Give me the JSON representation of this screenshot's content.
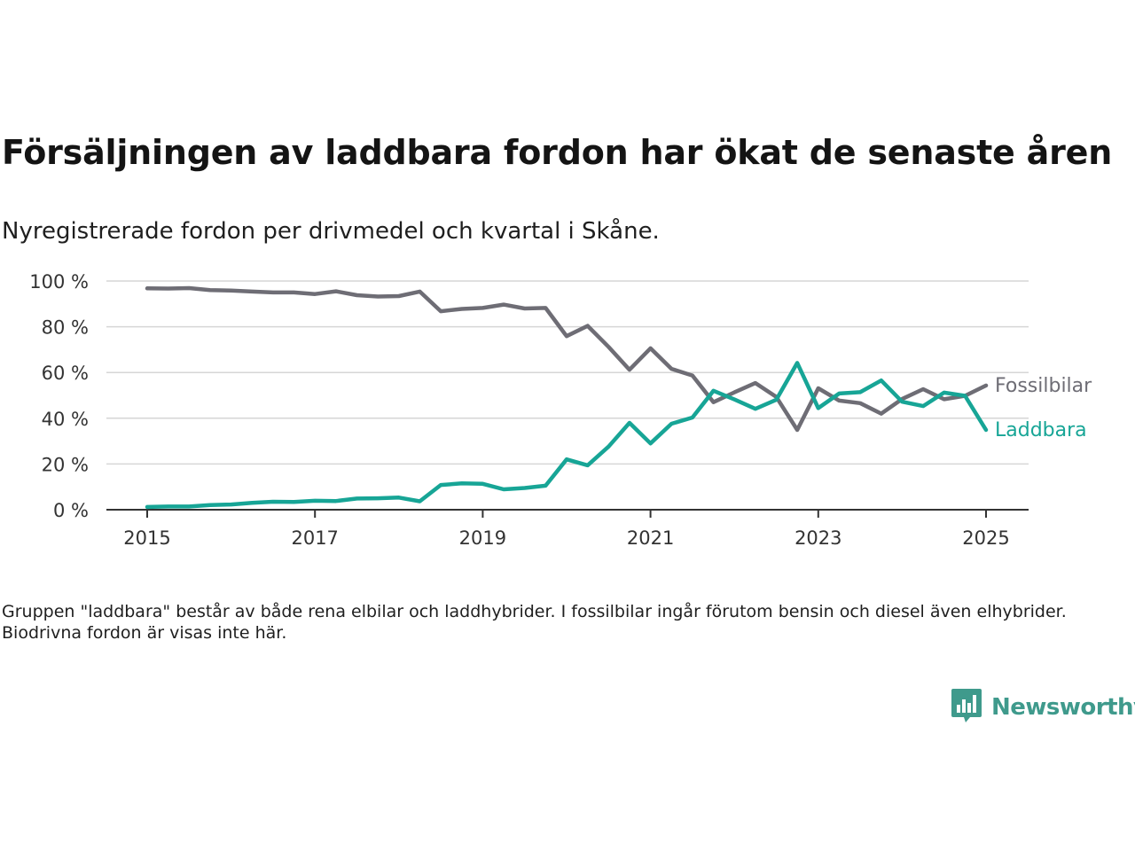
{
  "title": "Försäljningen av laddbara fordon har ökat de senaste åren",
  "subtitle": "Nyregistrerade fordon per drivmedel och kvartal i Skåne.",
  "note": "Gruppen \"laddbara\" består av både rena elbilar och laddhybrider. I fossilbilar ingår förutom bensin och diesel även elhybrider. Biodrivna fordon är visas inte här.",
  "brand": {
    "name": "Newsworthy",
    "icon": "newsworthy-logo-icon",
    "color": "#3f9a8c"
  },
  "chart_data": {
    "type": "line",
    "xlabel": "",
    "ylabel": "",
    "ylim": [
      0,
      100
    ],
    "xlim": [
      2015,
      2025.25
    ],
    "grid": true,
    "y_ticks": [
      {
        "value": 0,
        "label": "0 %"
      },
      {
        "value": 20,
        "label": "20 %"
      },
      {
        "value": 40,
        "label": "40 %"
      },
      {
        "value": 60,
        "label": "60 %"
      },
      {
        "value": 80,
        "label": "80 %"
      },
      {
        "value": 100,
        "label": "100 %"
      }
    ],
    "x_ticks": [
      {
        "value": 2015,
        "label": "2015"
      },
      {
        "value": 2017,
        "label": "2017"
      },
      {
        "value": 2019,
        "label": "2019"
      },
      {
        "value": 2021,
        "label": "2021"
      },
      {
        "value": 2023,
        "label": "2023"
      },
      {
        "value": 2025,
        "label": "2025"
      }
    ],
    "x": [
      "2015-Q1",
      "2015-Q2",
      "2015-Q3",
      "2015-Q4",
      "2016-Q1",
      "2016-Q2",
      "2016-Q3",
      "2016-Q4",
      "2017-Q1",
      "2017-Q2",
      "2017-Q3",
      "2017-Q4",
      "2018-Q1",
      "2018-Q2",
      "2018-Q3",
      "2018-Q4",
      "2019-Q1",
      "2019-Q2",
      "2019-Q3",
      "2019-Q4",
      "2020-Q1",
      "2020-Q2",
      "2020-Q3",
      "2020-Q4",
      "2021-Q1",
      "2021-Q2",
      "2021-Q3",
      "2021-Q4",
      "2022-Q1",
      "2022-Q2",
      "2022-Q3",
      "2022-Q4",
      "2023-Q1",
      "2023-Q2",
      "2023-Q3",
      "2023-Q4",
      "2024-Q1",
      "2024-Q2",
      "2024-Q3",
      "2024-Q4",
      "2025-Q1"
    ],
    "series": [
      {
        "name": "Fossilbilar",
        "color": "#6e6d75",
        "values": [
          96.8,
          96.7,
          96.9,
          96.0,
          95.8,
          95.4,
          95.0,
          95.0,
          94.3,
          95.5,
          93.8,
          93.2,
          93.4,
          95.4,
          86.8,
          87.8,
          88.2,
          89.7,
          88.0,
          88.2,
          75.9,
          80.4,
          71.2,
          61.2,
          70.6,
          61.6,
          58.7,
          47.0,
          51.3,
          55.4,
          49.3,
          34.9,
          53.1,
          47.7,
          46.6,
          42.0,
          48.4,
          52.7,
          48.3,
          49.8,
          54.3
        ]
      },
      {
        "name": "Laddbara",
        "color": "#17a596",
        "values": [
          1.2,
          1.4,
          1.4,
          2.0,
          2.3,
          3.0,
          3.5,
          3.4,
          3.9,
          3.8,
          4.9,
          5.0,
          5.3,
          3.7,
          10.8,
          11.5,
          11.3,
          8.9,
          9.5,
          10.5,
          22.0,
          19.4,
          27.6,
          38.0,
          29.0,
          37.6,
          40.3,
          52.0,
          48.2,
          44.1,
          48.1,
          64.2,
          44.4,
          50.8,
          51.4,
          56.5,
          47.2,
          45.3,
          51.2,
          49.8,
          34.9
        ]
      }
    ]
  }
}
